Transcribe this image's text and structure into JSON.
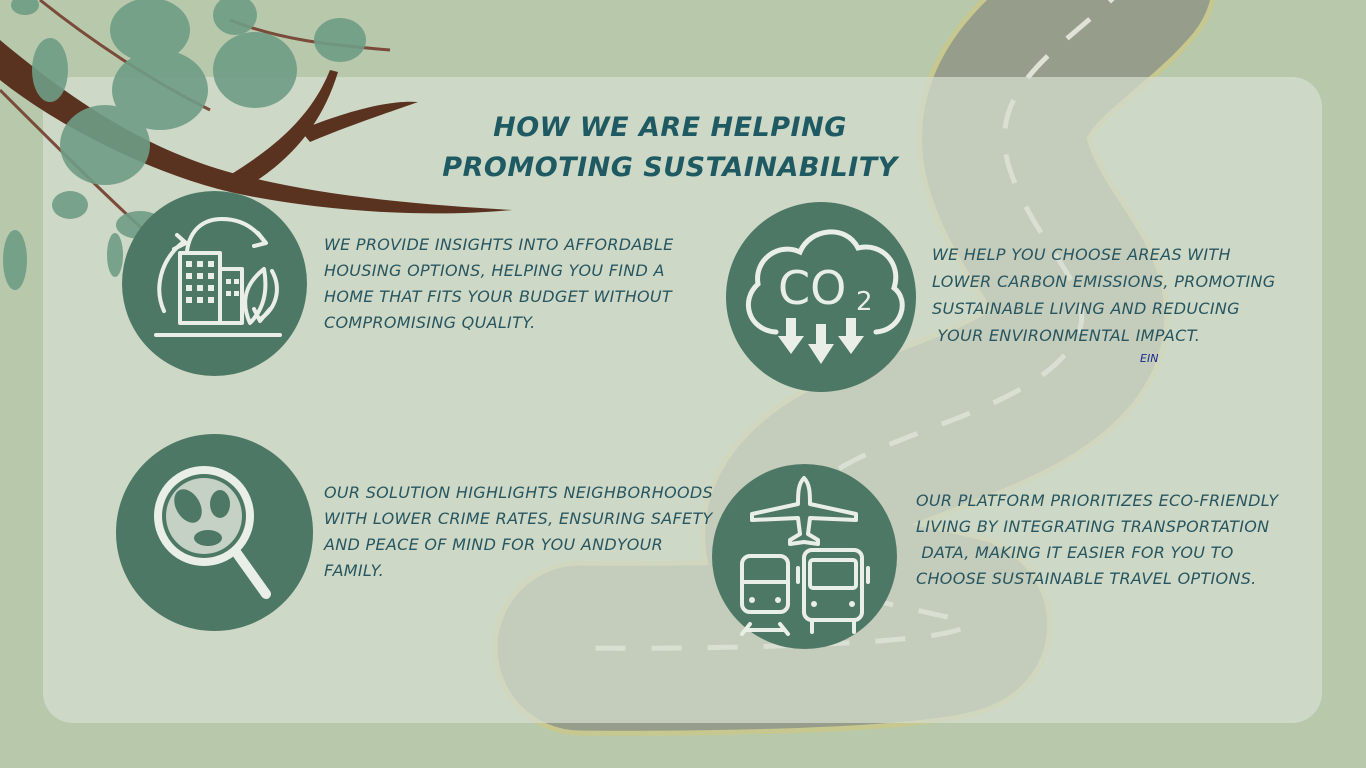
{
  "title": {
    "line1": "How we are helping",
    "line2": "promoting sustainability"
  },
  "features": [
    {
      "icon": "eco-building-icon",
      "lines": [
        "We provide insights into affordable",
        "housing options, helping you find a",
        "home that fits your budget without",
        "compromising quality."
      ]
    },
    {
      "icon": "co2-cloud-icon",
      "icon_text": "CO",
      "icon_sub": "2",
      "lines": [
        "We help you choose areas with",
        "lower carbon emissions, promoting",
        "sustainable living and reducing",
        " your environmental impact."
      ]
    },
    {
      "icon": "magnifier-icon",
      "lines": [
        "Our solution highlights neighborhoods",
        "with lower crime rates, ensuring safety",
        "and peace of mind for you andyour",
        "family."
      ]
    },
    {
      "icon": "transport-icon",
      "lines": [
        "Our platform prioritizes eco-friendly",
        "living by integrating transportation",
        " data, making it easier for you to",
        "choose sustainable travel options."
      ]
    }
  ],
  "note": "EIN",
  "colors": {
    "background": "#b7c8ab",
    "panel": "#d6ded0",
    "circle": "#4e7866",
    "title": "#1f5a63",
    "text": "#285660"
  }
}
